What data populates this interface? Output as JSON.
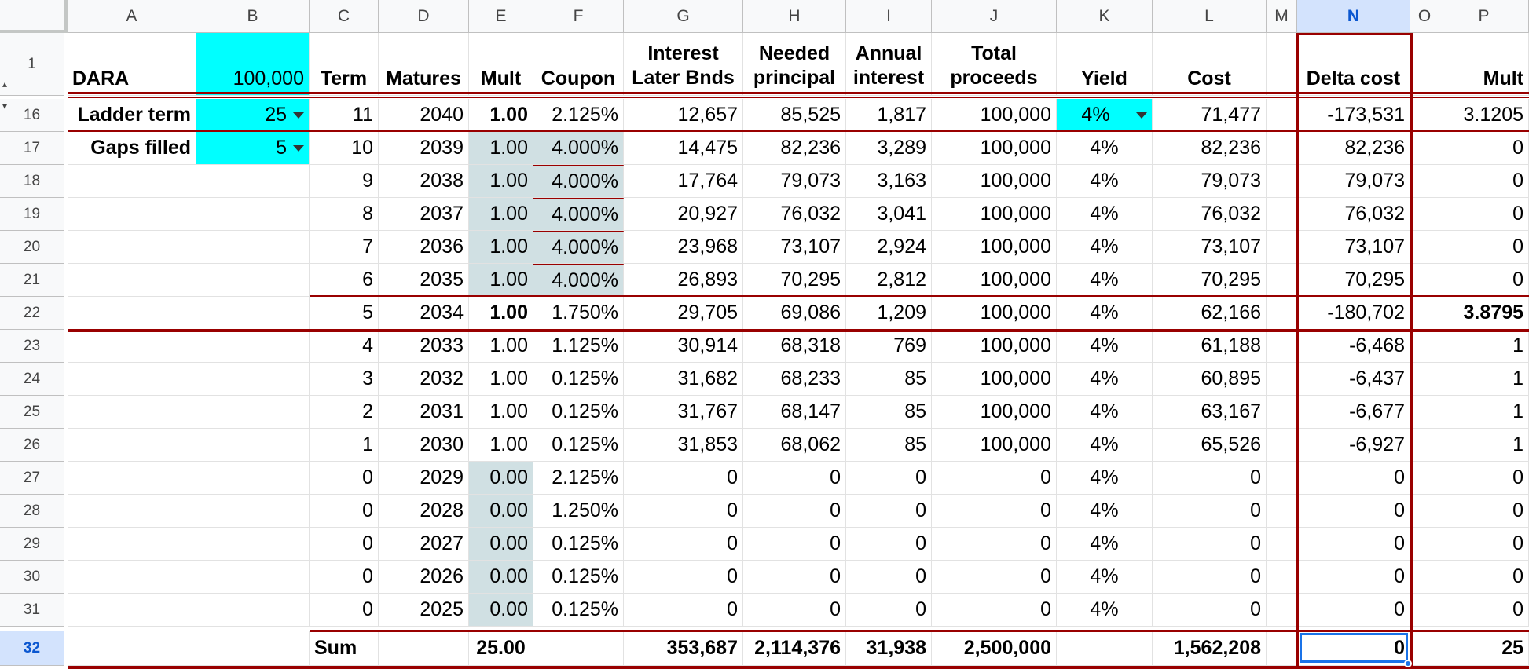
{
  "columns": [
    "A",
    "B",
    "C",
    "D",
    "E",
    "F",
    "G",
    "H",
    "I",
    "J",
    "K",
    "L",
    "M",
    "N",
    "O",
    "P"
  ],
  "header_row": {
    "row_number": "1",
    "labels": {
      "A": "DARA",
      "B": "100,000",
      "C": "Term",
      "D": "Matures",
      "E": "Mult",
      "F": "Coupon",
      "G": "Interest Later Bnds",
      "H": "Needed principal",
      "I": "Annual interest",
      "J": "Total proceeds",
      "K": "Yield",
      "L": "Cost",
      "M": "",
      "N": "Delta cost",
      "O": "",
      "P": "Mult"
    }
  },
  "controls": {
    "ladder_term_label": "Ladder term",
    "ladder_term_value": "25",
    "gaps_filled_label": "Gaps filled",
    "gaps_filled_value": "5",
    "yield_value": "4%"
  },
  "rows": [
    {
      "n": "16",
      "C": "11",
      "D": "2040",
      "E": "1.00",
      "F": "2.125%",
      "G": "12,657",
      "H": "85,525",
      "I": "1,817",
      "J": "100,000",
      "K": "4%",
      "L": "71,477",
      "N": "-173,531",
      "P": "3.1205"
    },
    {
      "n": "17",
      "C": "10",
      "D": "2039",
      "E": "1.00",
      "F": "4.000%",
      "G": "14,475",
      "H": "82,236",
      "I": "3,289",
      "J": "100,000",
      "K": "4%",
      "L": "82,236",
      "N": "82,236",
      "P": "0"
    },
    {
      "n": "18",
      "C": "9",
      "D": "2038",
      "E": "1.00",
      "F": "4.000%",
      "G": "17,764",
      "H": "79,073",
      "I": "3,163",
      "J": "100,000",
      "K": "4%",
      "L": "79,073",
      "N": "79,073",
      "P": "0"
    },
    {
      "n": "19",
      "C": "8",
      "D": "2037",
      "E": "1.00",
      "F": "4.000%",
      "G": "20,927",
      "H": "76,032",
      "I": "3,041",
      "J": "100,000",
      "K": "4%",
      "L": "76,032",
      "N": "76,032",
      "P": "0"
    },
    {
      "n": "20",
      "C": "7",
      "D": "2036",
      "E": "1.00",
      "F": "4.000%",
      "G": "23,968",
      "H": "73,107",
      "I": "2,924",
      "J": "100,000",
      "K": "4%",
      "L": "73,107",
      "N": "73,107",
      "P": "0"
    },
    {
      "n": "21",
      "C": "6",
      "D": "2035",
      "E": "1.00",
      "F": "4.000%",
      "G": "26,893",
      "H": "70,295",
      "I": "2,812",
      "J": "100,000",
      "K": "4%",
      "L": "70,295",
      "N": "70,295",
      "P": "0"
    },
    {
      "n": "22",
      "C": "5",
      "D": "2034",
      "E": "1.00",
      "F": "1.750%",
      "G": "29,705",
      "H": "69,086",
      "I": "1,209",
      "J": "100,000",
      "K": "4%",
      "L": "62,166",
      "N": "-180,702",
      "P": "3.8795"
    },
    {
      "n": "23",
      "C": "4",
      "D": "2033",
      "E": "1.00",
      "F": "1.125%",
      "G": "30,914",
      "H": "68,318",
      "I": "769",
      "J": "100,000",
      "K": "4%",
      "L": "61,188",
      "N": "-6,468",
      "P": "1"
    },
    {
      "n": "24",
      "C": "3",
      "D": "2032",
      "E": "1.00",
      "F": "0.125%",
      "G": "31,682",
      "H": "68,233",
      "I": "85",
      "J": "100,000",
      "K": "4%",
      "L": "60,895",
      "N": "-6,437",
      "P": "1"
    },
    {
      "n": "25",
      "C": "2",
      "D": "2031",
      "E": "1.00",
      "F": "0.125%",
      "G": "31,767",
      "H": "68,147",
      "I": "85",
      "J": "100,000",
      "K": "4%",
      "L": "63,167",
      "N": "-6,677",
      "P": "1"
    },
    {
      "n": "26",
      "C": "1",
      "D": "2030",
      "E": "1.00",
      "F": "0.125%",
      "G": "31,853",
      "H": "68,062",
      "I": "85",
      "J": "100,000",
      "K": "4%",
      "L": "65,526",
      "N": "-6,927",
      "P": "1"
    },
    {
      "n": "27",
      "C": "0",
      "D": "2029",
      "E": "0.00",
      "F": "2.125%",
      "G": "0",
      "H": "0",
      "I": "0",
      "J": "0",
      "K": "4%",
      "L": "0",
      "N": "0",
      "P": "0"
    },
    {
      "n": "28",
      "C": "0",
      "D": "2028",
      "E": "0.00",
      "F": "1.250%",
      "G": "0",
      "H": "0",
      "I": "0",
      "J": "0",
      "K": "4%",
      "L": "0",
      "N": "0",
      "P": "0"
    },
    {
      "n": "29",
      "C": "0",
      "D": "2027",
      "E": "0.00",
      "F": "0.125%",
      "G": "0",
      "H": "0",
      "I": "0",
      "J": "0",
      "K": "4%",
      "L": "0",
      "N": "0",
      "P": "0"
    },
    {
      "n": "30",
      "C": "0",
      "D": "2026",
      "E": "0.00",
      "F": "0.125%",
      "G": "0",
      "H": "0",
      "I": "0",
      "J": "0",
      "K": "4%",
      "L": "0",
      "N": "0",
      "P": "0"
    },
    {
      "n": "31",
      "C": "0",
      "D": "2025",
      "E": "0.00",
      "F": "0.125%",
      "G": "0",
      "H": "0",
      "I": "0",
      "J": "0",
      "K": "4%",
      "L": "0",
      "N": "0",
      "P": "0"
    }
  ],
  "sum_row": {
    "n": "32",
    "C": "Sum",
    "E": "25.00",
    "G": "353,687",
    "H": "2,114,376",
    "I": "31,938",
    "J": "2,500,000",
    "L": "1,562,208",
    "N": "0",
    "P": "25"
  },
  "selected_column": "N",
  "selected_row": "32",
  "colors": {
    "cyan_fill": "#00ffff",
    "gray_fill": "#d0e0e3",
    "border_red": "#990000",
    "selection_blue": "#1a73e8"
  }
}
